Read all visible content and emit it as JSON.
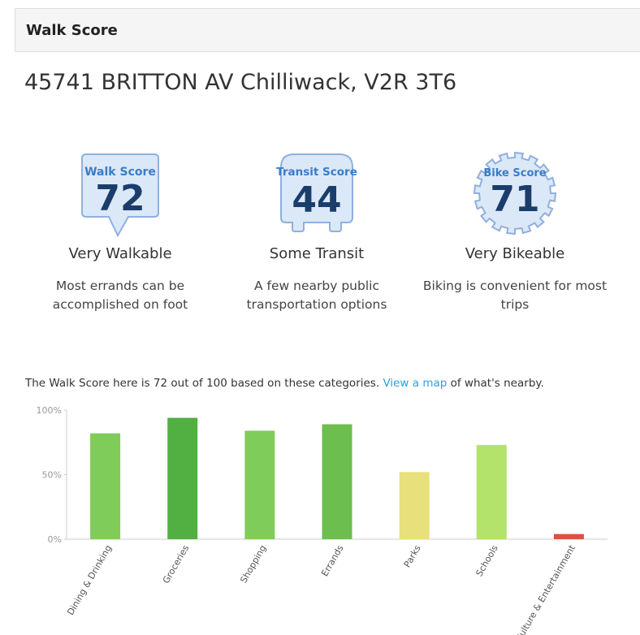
{
  "header": {
    "title": "Walk Score"
  },
  "address": "45741 BRITTON AV Chilliwack, V2R 3T6",
  "scores": [
    {
      "badge": "Walk Score",
      "score": "72",
      "rating": "Very Walkable",
      "description": "Most errands can be accomplished on foot"
    },
    {
      "badge": "Transit Score",
      "score": "44",
      "rating": "Some Transit",
      "description": "A few nearby public transportation options"
    },
    {
      "badge": "Bike Score",
      "score": "71",
      "rating": "Very Bikeable",
      "description": "Biking is convenient for most trips"
    }
  ],
  "summary": {
    "before": "The Walk Score here is 72 out of 100 based on these categories.",
    "link": "View a map",
    "after": "of what's nearby."
  },
  "chart_data": {
    "type": "bar",
    "categories": [
      "Dining & Drinking",
      "Groceries",
      "Shopping",
      "Errands",
      "Parks",
      "Schools",
      "Culture & Entertainment"
    ],
    "values": [
      82,
      94,
      84,
      89,
      52,
      73,
      4
    ],
    "colors": [
      "#80cc5a",
      "#52b043",
      "#80cc5a",
      "#6cbf4f",
      "#e8e07a",
      "#b3e36b",
      "#d9533d"
    ],
    "ylim": [
      0,
      100
    ],
    "yticks": [
      {
        "value": 0,
        "label": "0%"
      },
      {
        "value": 50,
        "label": "50%"
      },
      {
        "value": 100,
        "label": "100%"
      }
    ]
  }
}
